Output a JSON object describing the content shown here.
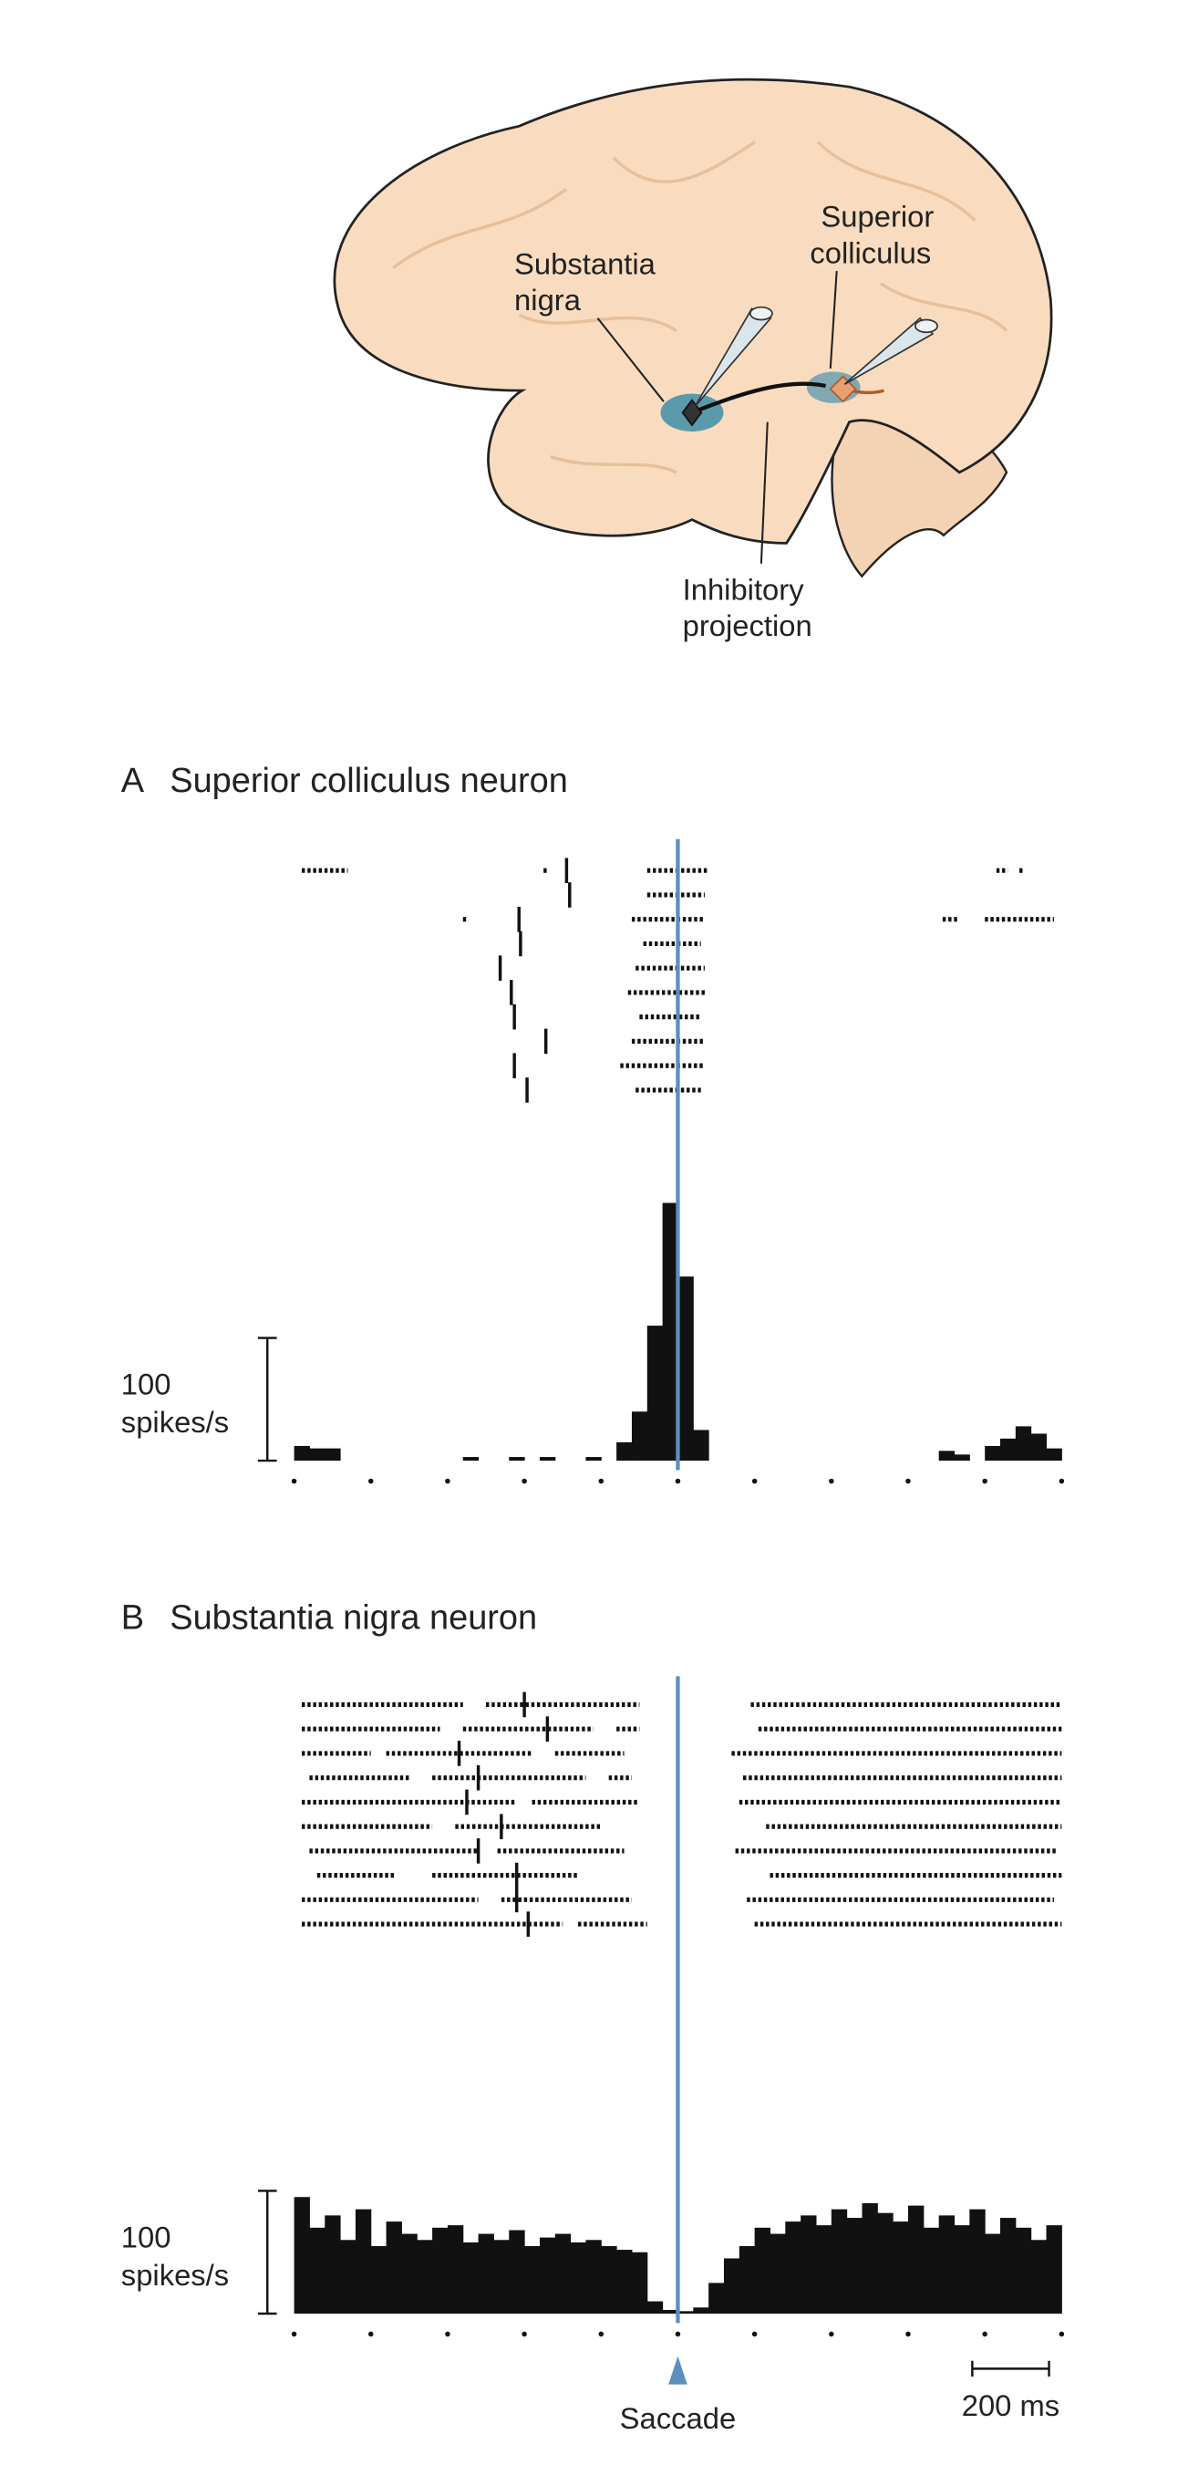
{
  "diagram": {
    "labels": [
      {
        "lines": [
          "Substantia",
          "nigra"
        ]
      },
      {
        "lines": [
          "Superior",
          "colliculus"
        ]
      },
      {
        "lines": [
          "Inhibitory",
          "projection"
        ]
      }
    ]
  },
  "chart_data": [
    {
      "type": "histogram",
      "panel": "A",
      "title": "Superior colliculus neuron",
      "color": "#111111",
      "event_color": "#5b8fc0",
      "xlim": [
        -1000,
        1000
      ],
      "xticks": [
        -1000,
        -800,
        -600,
        -400,
        -200,
        0,
        200,
        400,
        600,
        800,
        1000
      ],
      "ylim": [
        0,
        230
      ],
      "bins": [
        -1000,
        -960,
        -920,
        -880,
        -840,
        -800,
        -760,
        -720,
        -680,
        -640,
        -600,
        -560,
        -520,
        -480,
        -440,
        -400,
        -360,
        -320,
        -280,
        -240,
        -200,
        -160,
        -120,
        -80,
        -40,
        0,
        40,
        80,
        120,
        160,
        200,
        240,
        280,
        320,
        360,
        400,
        440,
        480,
        520,
        560,
        600,
        640,
        680,
        720,
        760,
        800,
        840,
        880,
        920,
        960,
        1000
      ],
      "values": [
        12,
        10,
        10,
        0,
        0,
        0,
        0,
        0,
        0,
        0,
        0,
        3,
        0,
        0,
        3,
        0,
        3,
        0,
        0,
        3,
        0,
        15,
        40,
        110,
        210,
        150,
        25,
        0,
        0,
        0,
        0,
        0,
        0,
        0,
        0,
        0,
        0,
        0,
        0,
        0,
        0,
        0,
        8,
        5,
        0,
        12,
        18,
        28,
        22,
        10
      ],
      "raster": [
        {
          "segments": [
            [
              -980,
              -860
            ],
            [
              -350,
              -340
            ],
            [
              -80,
              80
            ],
            [
              830,
              860
            ],
            [
              890,
              900
            ]
          ],
          "marker": -290
        },
        {
          "segments": [
            [
              -80,
              70
            ]
          ],
          "marker": -282
        },
        {
          "segments": [
            [
              -560,
              -550
            ],
            [
              -120,
              70
            ],
            [
              690,
              730
            ],
            [
              800,
              980
            ]
          ],
          "marker": -414
        },
        {
          "segments": [
            [
              -90,
              60
            ]
          ],
          "marker": -410
        },
        {
          "segments": [
            [
              -110,
              70
            ]
          ],
          "marker": -463
        },
        {
          "segments": [
            [
              -130,
              70
            ]
          ],
          "marker": -434
        },
        {
          "segments": [
            [
              -100,
              60
            ]
          ],
          "marker": -426
        },
        {
          "segments": [
            [
              -120,
              70
            ]
          ],
          "marker": -344
        },
        {
          "segments": [
            [
              -150,
              70
            ]
          ],
          "marker": -426
        },
        {
          "segments": [
            [
              -110,
              60
            ]
          ],
          "marker": -393
        }
      ],
      "scale_bar": {
        "value": 100,
        "label": "100",
        "unit": "spikes/s"
      }
    },
    {
      "type": "histogram",
      "panel": "B",
      "title": "Substantia nigra neuron",
      "color": "#111111",
      "event_color": "#5b8fc0",
      "xlim": [
        -1000,
        1000
      ],
      "xticks": [
        -1000,
        -800,
        -600,
        -400,
        -200,
        0,
        200,
        400,
        600,
        800,
        1000
      ],
      "ylim": [
        0,
        120
      ],
      "bins": [
        -1000,
        -960,
        -920,
        -880,
        -840,
        -800,
        -760,
        -720,
        -680,
        -640,
        -600,
        -560,
        -520,
        -480,
        -440,
        -400,
        -360,
        -320,
        -280,
        -240,
        -200,
        -160,
        -120,
        -80,
        -40,
        0,
        40,
        80,
        120,
        160,
        200,
        240,
        280,
        320,
        360,
        400,
        440,
        480,
        520,
        560,
        600,
        640,
        680,
        720,
        760,
        800,
        840,
        880,
        920,
        960,
        1000
      ],
      "values": [
        95,
        70,
        80,
        60,
        85,
        55,
        75,
        65,
        60,
        70,
        72,
        58,
        65,
        60,
        68,
        55,
        62,
        65,
        58,
        60,
        55,
        52,
        50,
        10,
        3,
        2,
        5,
        25,
        45,
        55,
        70,
        65,
        75,
        80,
        72,
        85,
        78,
        90,
        82,
        75,
        88,
        70,
        80,
        72,
        85,
        65,
        78,
        70,
        60,
        72
      ],
      "raster": [
        {
          "segments": [
            [
              -980,
              -560
            ],
            [
              -500,
              -100
            ],
            [
              190,
              1000
            ]
          ],
          "marker": -400
        },
        {
          "segments": [
            [
              -980,
              -620
            ],
            [
              -560,
              -220
            ],
            [
              -160,
              -100
            ],
            [
              210,
              1000
            ]
          ],
          "marker": -340
        },
        {
          "segments": [
            [
              -980,
              -800
            ],
            [
              -760,
              -380
            ],
            [
              -320,
              -140
            ],
            [
              140,
              1000
            ]
          ],
          "marker": -570
        },
        {
          "segments": [
            [
              -960,
              -700
            ],
            [
              -640,
              -240
            ],
            [
              -180,
              -120
            ],
            [
              170,
              1000
            ]
          ],
          "marker": -520
        },
        {
          "segments": [
            [
              -980,
              -420
            ],
            [
              -380,
              -100
            ],
            [
              160,
              1000
            ]
          ],
          "marker": -550
        },
        {
          "segments": [
            [
              -980,
              -640
            ],
            [
              -580,
              -200
            ],
            [
              230,
              1000
            ]
          ],
          "marker": -460
        },
        {
          "segments": [
            [
              -960,
              -520
            ],
            [
              -470,
              -140
            ],
            [
              150,
              990
            ]
          ],
          "marker": -520
        },
        {
          "segments": [
            [
              -940,
              -740
            ],
            [
              -640,
              -260
            ],
            [
              240,
              1000
            ]
          ],
          "marker": -420
        },
        {
          "segments": [
            [
              -980,
              -520
            ],
            [
              -460,
              -120
            ],
            [
              180,
              980
            ]
          ],
          "marker": -420
        },
        {
          "segments": [
            [
              -980,
              -300
            ],
            [
              -260,
              -80
            ],
            [
              200,
              1000
            ]
          ],
          "marker": -390
        }
      ],
      "scale_bar": {
        "value": 100,
        "label": "100",
        "unit": "spikes/s"
      },
      "time_bar": {
        "value": 200,
        "label": "200 ms"
      },
      "event": {
        "value": 0,
        "label": "Saccade"
      }
    }
  ]
}
